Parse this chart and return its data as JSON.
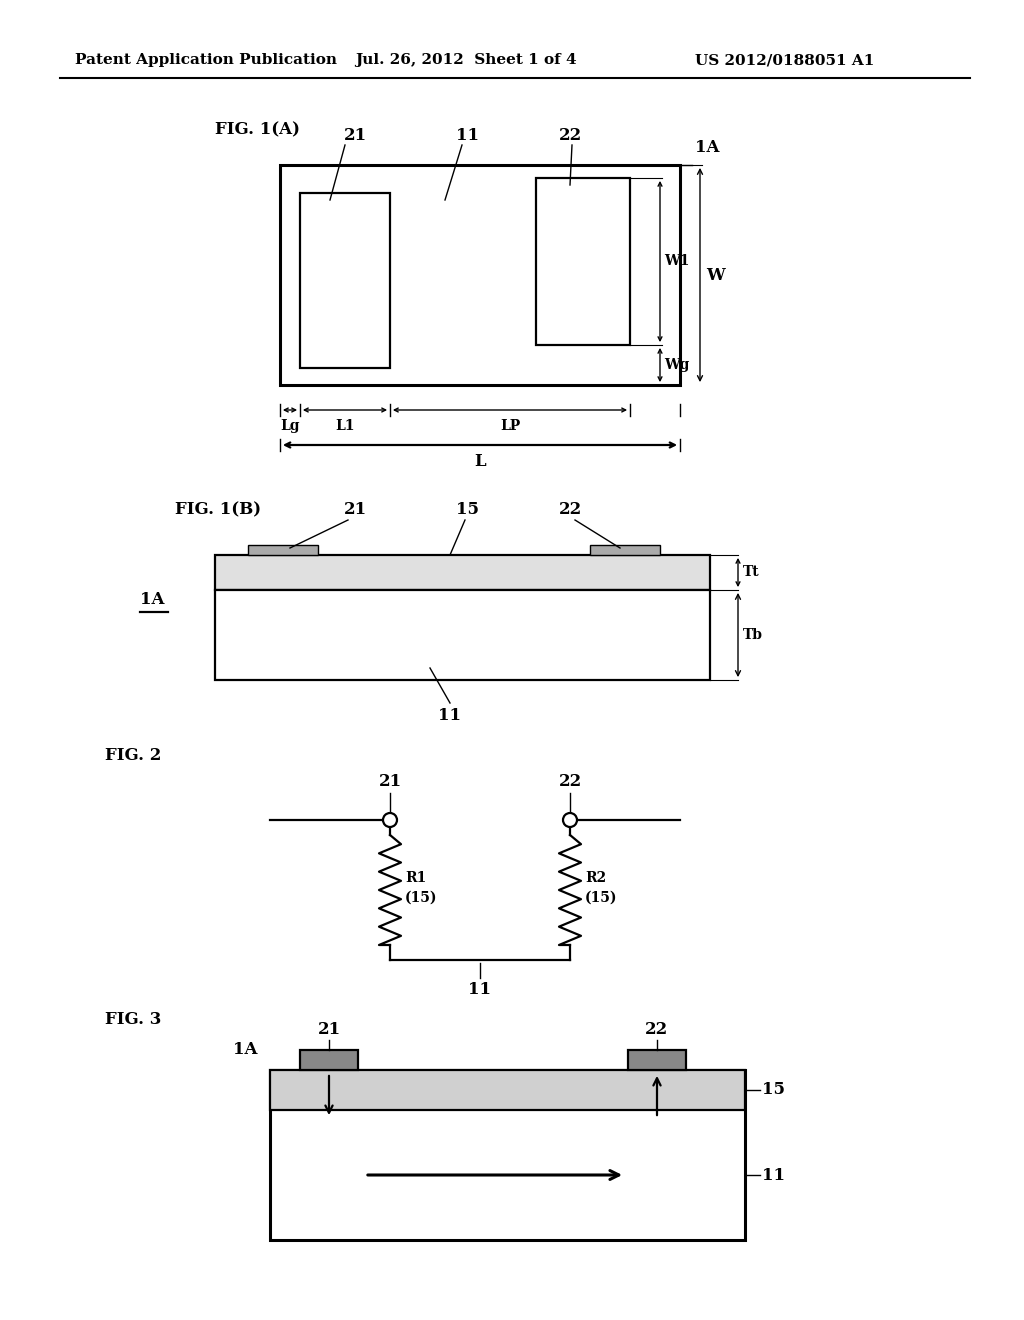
{
  "bg_color": "#ffffff",
  "header_left": "Patent Application Publication",
  "header_mid": "Jul. 26, 2012  Sheet 1 of 4",
  "header_right": "US 2012/0188051 A1",
  "fig1A_label": "FIG. 1(A)",
  "fig1B_label": "FIG. 1(B)",
  "fig2_label": "FIG. 2",
  "fig3_label": "FIG. 3",
  "lw_thin": 1.0,
  "lw_med": 1.6,
  "lw_thick": 2.2,
  "fs_header": 11,
  "fs_label": 12,
  "fs_small": 10
}
